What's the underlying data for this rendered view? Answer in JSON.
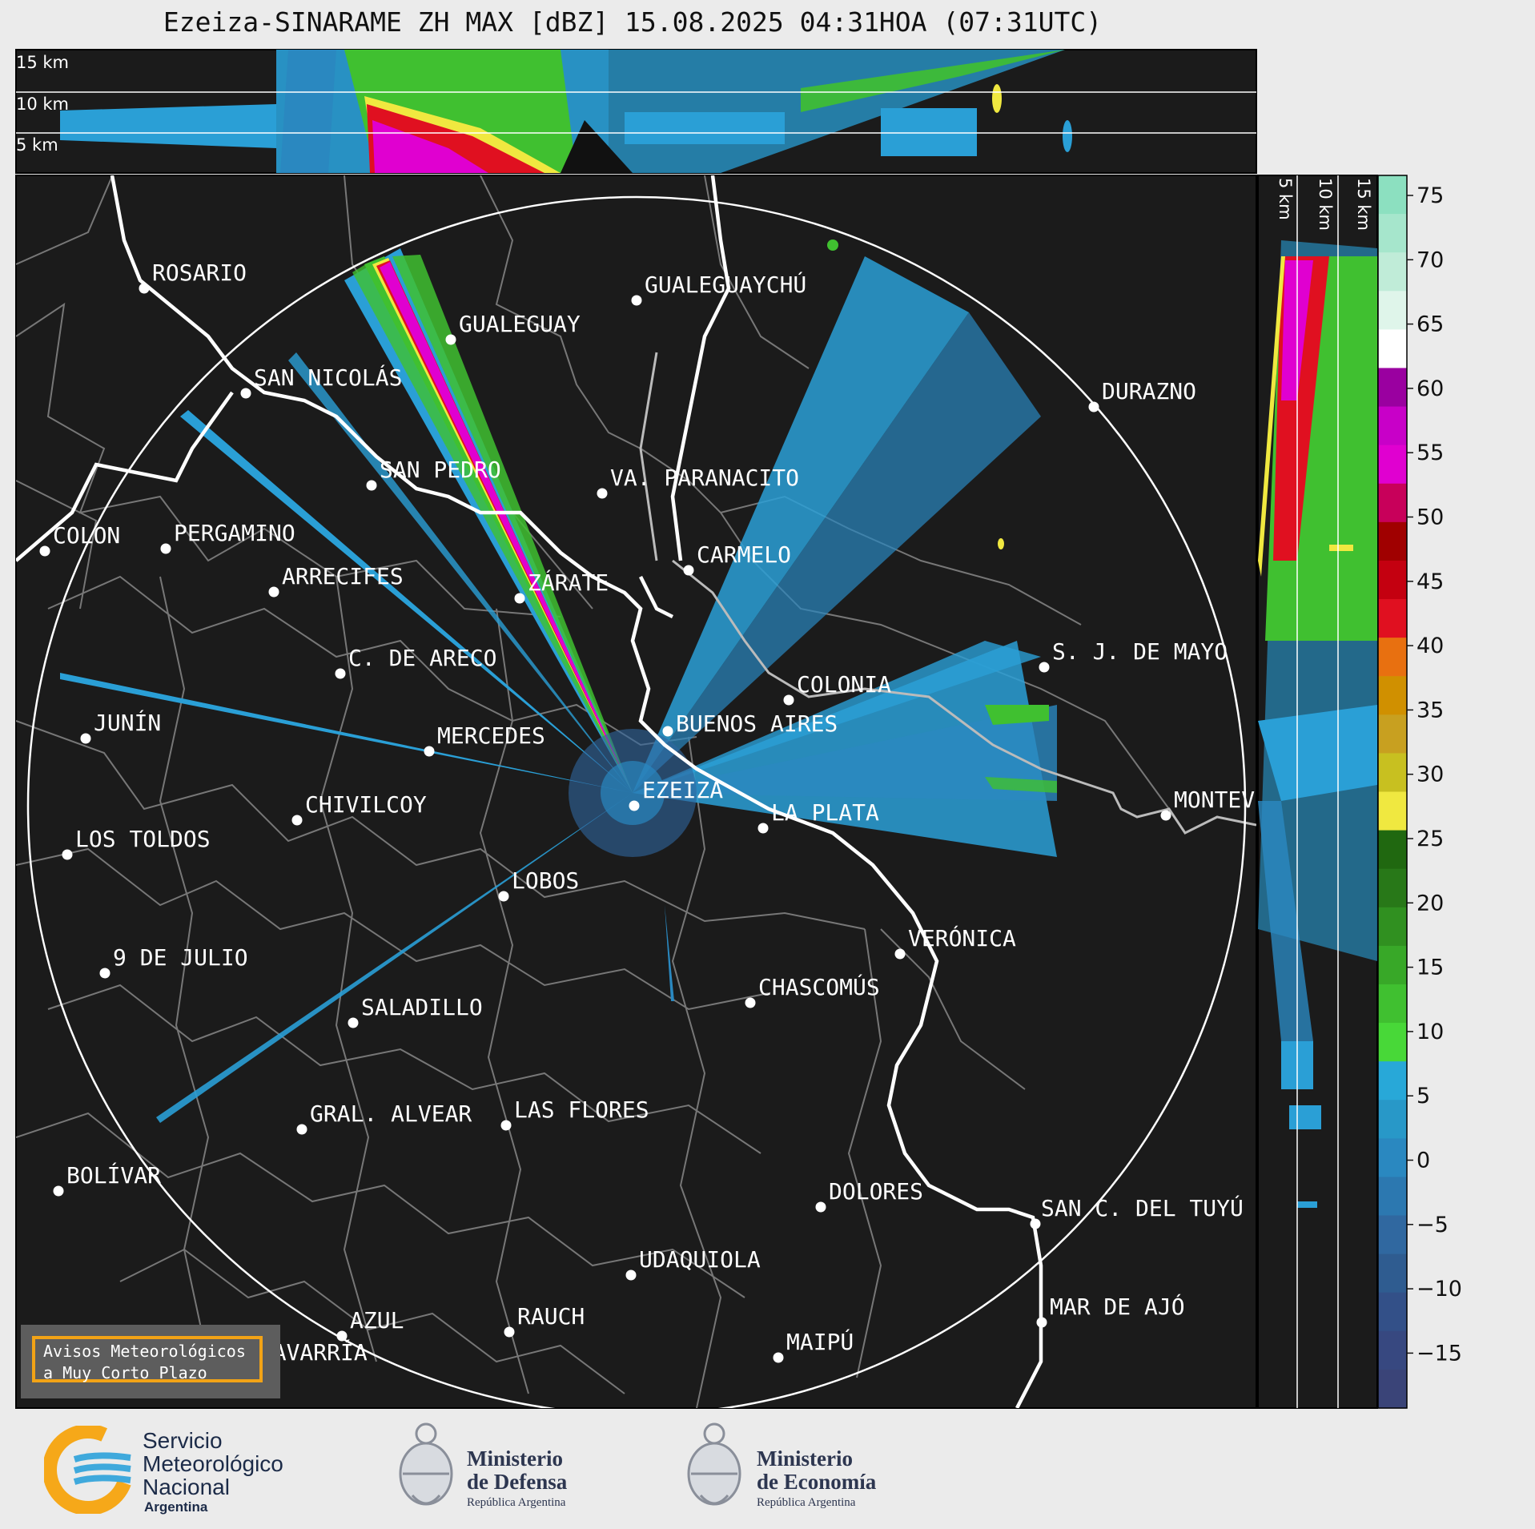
{
  "title": "Ezeiza-SINARAME ZH MAX [dBZ] 15.08.2025 04:31HOA (07:31UTC)",
  "height_labels": [
    "15 km",
    "10 km",
    "5 km"
  ],
  "colorbar": {
    "ticks": [
      "75",
      "70",
      "65",
      "60",
      "55",
      "50",
      "45",
      "40",
      "35",
      "30",
      "25",
      "20",
      "15",
      "10",
      "5",
      "0",
      "−5",
      "−10",
      "−15"
    ],
    "colors": [
      "#8ce0c0",
      "#a6e6cc",
      "#c0ecd8",
      "#dff5ea",
      "#ffffff",
      "#9a00a0",
      "#c800c8",
      "#e000d0",
      "#c8005a",
      "#a00000",
      "#c40010",
      "#e01020",
      "#e87010",
      "#d09000",
      "#c8a020",
      "#c8c020",
      "#f0e840",
      "#206810",
      "#287818",
      "#309020",
      "#38a828",
      "#40c030",
      "#48d838",
      "#28a8d8",
      "#2898c8",
      "#2a88c0",
      "#2c78b0",
      "#3068a0",
      "#2f5c90",
      "#335088",
      "#374880",
      "#3a4478"
    ]
  },
  "cities": [
    {
      "name": "ROSARIO"
    },
    {
      "name": "GUALEGUAYCHÚ"
    },
    {
      "name": "GUALEGUAY"
    },
    {
      "name": "SAN NICOLÁS"
    },
    {
      "name": "DURAZNO"
    },
    {
      "name": "SAN PEDRO"
    },
    {
      "name": "VA. PARANACITO"
    },
    {
      "name": "COLON"
    },
    {
      "name": "PERGAMINO"
    },
    {
      "name": "CARMELO"
    },
    {
      "name": "ARRECIFES"
    },
    {
      "name": "ZÁRATE"
    },
    {
      "name": "C. DE ARECO"
    },
    {
      "name": "S. J. DE MAYO"
    },
    {
      "name": "COLONIA"
    },
    {
      "name": "JUNÍN"
    },
    {
      "name": "BUENOS AIRES"
    },
    {
      "name": "MERCEDES"
    },
    {
      "name": "EZEIZA"
    },
    {
      "name": "MONTEVIDEO"
    },
    {
      "name": "CHIVILCOY"
    },
    {
      "name": "LA PLATA"
    },
    {
      "name": "LOS TOLDOS"
    },
    {
      "name": "LOBOS"
    },
    {
      "name": "VERÓNICA"
    },
    {
      "name": "9 DE JULIO"
    },
    {
      "name": "CHASCOMÚS"
    },
    {
      "name": "SALADILLO"
    },
    {
      "name": "GRAL. ALVEAR"
    },
    {
      "name": "LAS FLORES"
    },
    {
      "name": "BOLÍVAR"
    },
    {
      "name": "DOLORES"
    },
    {
      "name": "SAN C. DEL TUYÚ"
    },
    {
      "name": "UDAQUIOLA"
    },
    {
      "name": "MAR DE AJÓ"
    },
    {
      "name": "AZUL"
    },
    {
      "name": "RAUCH"
    },
    {
      "name": "OLAVARRÍA"
    },
    {
      "name": "MAIPÚ"
    }
  ],
  "avisos": {
    "line1": "Avisos Meteorológicos",
    "line2": "a Muy Corto Plazo"
  },
  "logos": {
    "smn": {
      "line1": "Servicio",
      "line2": "Meteorológico",
      "line3": "Nacional",
      "line4": "Argentina"
    },
    "defensa": {
      "line1": "Ministerio",
      "line2": "de Defensa",
      "line3": "República Argentina"
    },
    "economia": {
      "line1": "Ministerio",
      "line2": "de Economía",
      "line3": "República Argentina"
    }
  }
}
